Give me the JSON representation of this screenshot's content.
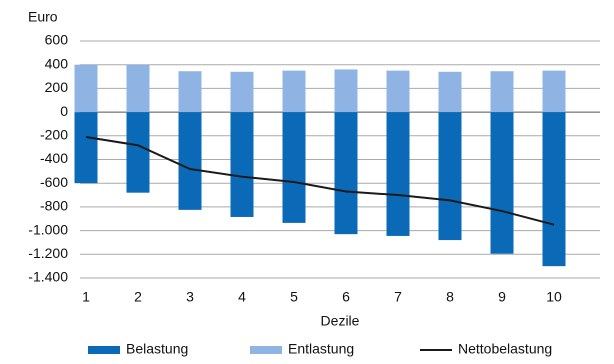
{
  "chart_data": {
    "type": "bar",
    "y_label": "Euro",
    "x_label": "Dezile",
    "categories": [
      "1",
      "2",
      "3",
      "4",
      "5",
      "6",
      "7",
      "8",
      "9",
      "10"
    ],
    "series": [
      {
        "name": "Belastung",
        "type": "bar",
        "color": "#0a6ab8",
        "values": [
          -600,
          -680,
          -825,
          -885,
          -935,
          -1030,
          -1045,
          -1080,
          -1195,
          -1300
        ]
      },
      {
        "name": "Entlastung",
        "type": "bar",
        "color": "#8fb4e3",
        "values": [
          400,
          400,
          345,
          340,
          350,
          360,
          350,
          340,
          345,
          350
        ]
      },
      {
        "name": "Nettobelastung",
        "type": "line",
        "color": "#1a1a1a",
        "values": [
          -210,
          -280,
          -480,
          -545,
          -590,
          -670,
          -700,
          -745,
          -835,
          -950
        ]
      }
    ],
    "ylim": [
      -1400,
      600
    ],
    "yticks": [
      {
        "value": -1400,
        "label": "-1.400"
      },
      {
        "value": -1200,
        "label": "-1.200"
      },
      {
        "value": -1000,
        "label": "-1.000"
      },
      -800,
      -600,
      -400,
      -200,
      0,
      200,
      400,
      600
    ],
    "grid": true,
    "legend": "bottom"
  }
}
